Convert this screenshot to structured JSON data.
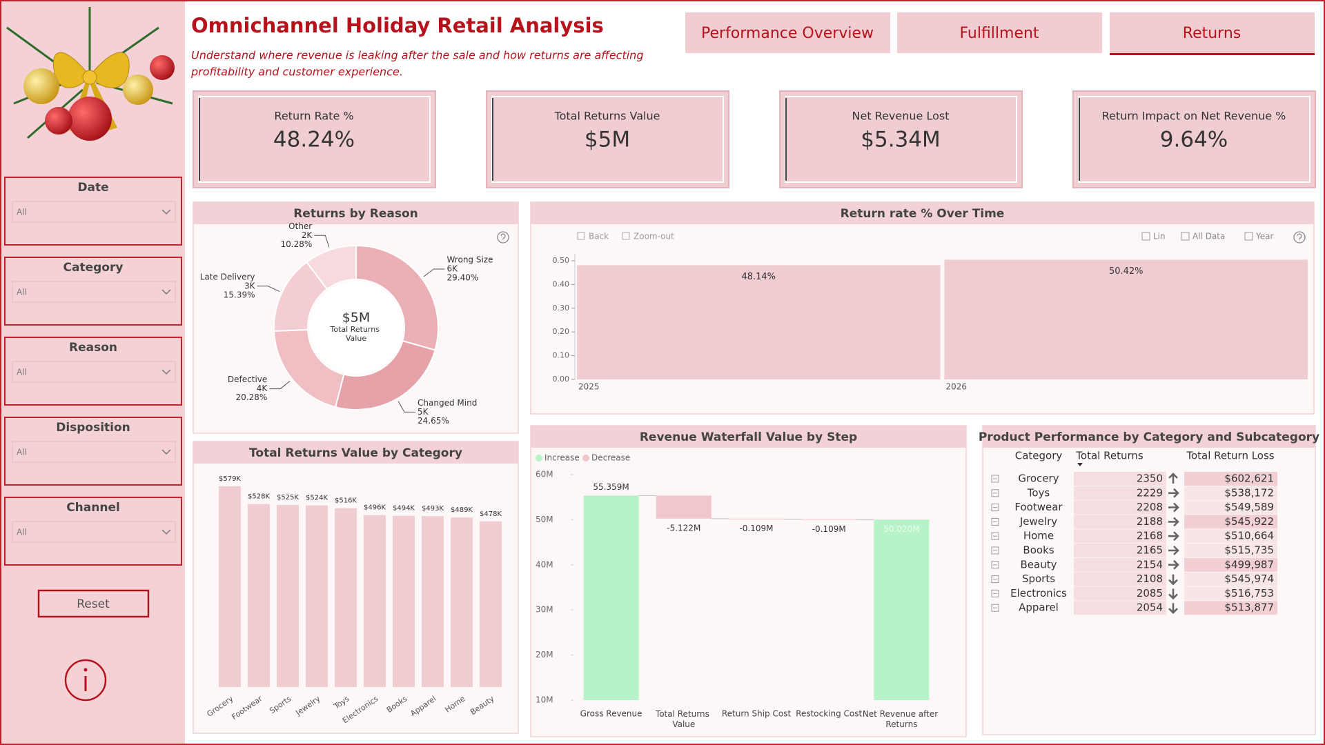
{
  "header": {
    "title": "Omnichannel Holiday Retail Analysis",
    "subtitle_lines": [
      "Understand where revenue is leaking after the sale and how returns are affecting",
      "profitability and customer experience."
    ]
  },
  "tabs": {
    "items": [
      "Performance Overview",
      "Fulfillment",
      "Returns"
    ],
    "active": 2
  },
  "kpis": [
    {
      "label": "Return Rate %",
      "value": "48.24%"
    },
    {
      "label": "Total Returns Value",
      "value": "$5M"
    },
    {
      "label": "Net Revenue Lost",
      "value": "$5.34M"
    },
    {
      "label": "Return Impact on Net Revenue %",
      "value": "9.64%"
    }
  ],
  "filters": [
    {
      "label": "Date",
      "value": "All"
    },
    {
      "label": "Category",
      "value": "All"
    },
    {
      "label": "Reason",
      "value": "All"
    },
    {
      "label": "Disposition",
      "value": "All"
    },
    {
      "label": "Channel",
      "value": "All"
    }
  ],
  "reset": "Reset",
  "chart_data": [
    {
      "type": "donut",
      "title": "Returns by Reason",
      "categories": [
        "Wrong Size",
        "Changed Mind",
        "Defective",
        "Late Delivery",
        "Other"
      ],
      "values": [
        29.4,
        24.65,
        20.28,
        15.39,
        10.28
      ],
      "value_labels": [
        "29.40%",
        "24.65%",
        "20.28%",
        "15.39%",
        "10.28%"
      ],
      "counts": [
        6000,
        5000,
        4000,
        3000,
        2000
      ],
      "count_labels": [
        "6K",
        "5K",
        "4K",
        "3K",
        "2K"
      ],
      "colors": [
        "#eab0b6",
        "#e6a2a9",
        "#efbfc4",
        "#f3cdd1",
        "#f6dadd"
      ],
      "center_value": "$5M",
      "center_label": "Total Returns Value"
    },
    {
      "type": "bar",
      "title": "Return rate % Over Time",
      "categories": [
        "2025",
        "2026"
      ],
      "values": [
        0.4814,
        0.5042
      ],
      "value_labels": [
        "48.14%",
        "50.42%"
      ],
      "color": "#f0cdd1",
      "ylim": [
        0,
        0.5
      ],
      "yticks": [
        {
          "value": 0,
          "label": "0.00"
        },
        {
          "value": 0.1,
          "label": "0.10"
        },
        {
          "value": 0.2,
          "label": "0.20"
        },
        {
          "value": 0.3,
          "label": "0.30"
        },
        {
          "value": 0.4,
          "label": "0.40"
        },
        {
          "value": 0.5,
          "label": "0.50"
        }
      ],
      "toolbar_left": [
        "Back",
        "Zoom-out"
      ],
      "toolbar_right": [
        "Lin",
        "All Data",
        "Year"
      ]
    },
    {
      "type": "bar",
      "title": "Total Returns Value by Category",
      "categories": [
        "Grocery",
        "Footwear",
        "Sports",
        "Jewelry",
        "Toys",
        "Electronics",
        "Books",
        "Apparel",
        "Home",
        "Beauty"
      ],
      "values": [
        579000,
        528000,
        525000,
        524000,
        516000,
        496000,
        494000,
        493000,
        489000,
        478000
      ],
      "value_labels": [
        "$579K",
        "$528K",
        "$525K",
        "$524K",
        "$516K",
        "$496K",
        "$494K",
        "$493K",
        "$489K",
        "$478K"
      ],
      "color": "#f0cdd1"
    },
    {
      "type": "waterfall",
      "title": "Revenue Waterfall Value by Step",
      "categories": [
        "Gross Revenue",
        "Total Returns Value",
        "Return Ship Cost",
        "Restocking Cost",
        "Net Revenue after Returns"
      ],
      "measures": [
        "absolute",
        "relative",
        "relative",
        "relative",
        "total"
      ],
      "values": [
        55359000,
        -5122000,
        -109000,
        -109000,
        50020000
      ],
      "value_labels": [
        "55.359M",
        "-5.122M",
        "-0.109M",
        "-0.109M",
        "50.020M"
      ],
      "legend": [
        {
          "name": "Increase",
          "color": "#b8f2c8"
        },
        {
          "name": "Decrease",
          "color": "#f0c8cc"
        }
      ],
      "ylim": [
        10000000,
        60000000
      ],
      "yticks": [
        {
          "value": 10000000,
          "label": "10M"
        },
        {
          "value": 20000000,
          "label": "20M"
        },
        {
          "value": 30000000,
          "label": "30M"
        },
        {
          "value": 40000000,
          "label": "40M"
        },
        {
          "value": 50000000,
          "label": "50M"
        },
        {
          "value": 60000000,
          "label": "60M"
        }
      ]
    }
  ],
  "table": {
    "title": "Product Performance by Category and Subcategory",
    "columns": [
      "Category",
      "Total Returns",
      "Total Return Loss"
    ],
    "rows": [
      {
        "category": "Grocery",
        "returns": 2350,
        "trend": "up",
        "loss": "$602,621"
      },
      {
        "category": "Toys",
        "returns": 2229,
        "trend": "right",
        "loss": "$538,172"
      },
      {
        "category": "Footwear",
        "returns": 2208,
        "trend": "right",
        "loss": "$549,589"
      },
      {
        "category": "Jewelry",
        "returns": 2188,
        "trend": "right",
        "loss": "$545,922"
      },
      {
        "category": "Home",
        "returns": 2168,
        "trend": "right",
        "loss": "$510,664"
      },
      {
        "category": "Books",
        "returns": 2165,
        "trend": "right",
        "loss": "$515,735"
      },
      {
        "category": "Beauty",
        "returns": 2154,
        "trend": "right",
        "loss": "$499,987"
      },
      {
        "category": "Sports",
        "returns": 2108,
        "trend": "down",
        "loss": "$545,974"
      },
      {
        "category": "Electronics",
        "returns": 2085,
        "trend": "down",
        "loss": "$516,753"
      },
      {
        "category": "Apparel",
        "returns": 2054,
        "trend": "down",
        "loss": "$513,877"
      }
    ]
  }
}
